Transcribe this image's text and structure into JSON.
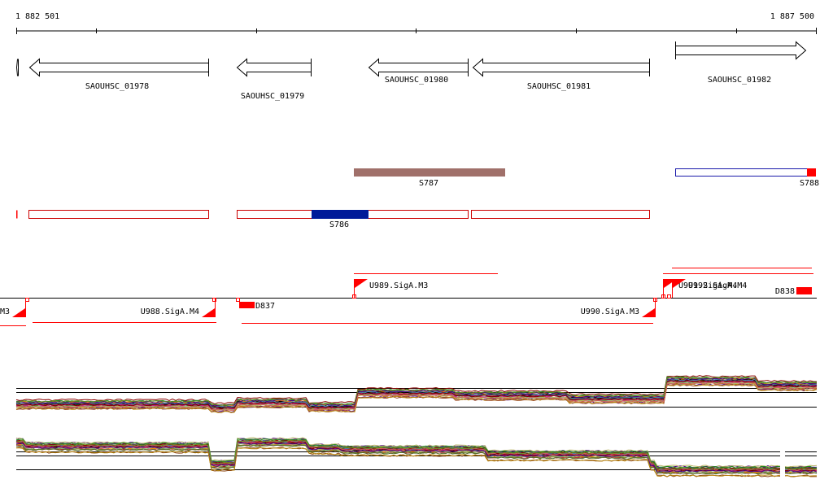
{
  "ruler": {
    "start_label": "1 882 501",
    "end_label": "1 887 500"
  },
  "genes": [
    {
      "name": "SAOUHSC_01978",
      "strand": "-"
    },
    {
      "name": "SAOUHSC_01979",
      "strand": "-"
    },
    {
      "name": "SAOUHSC_01980",
      "strand": "-"
    },
    {
      "name": "SAOUHSC_01981",
      "strand": "-"
    },
    {
      "name": "SAOUHSC_01982",
      "strand": "+"
    }
  ],
  "segments_top": [
    {
      "name": "S787"
    },
    {
      "name": "S788"
    }
  ],
  "segments_bottom": [
    {
      "name": "S786"
    }
  ],
  "promoters": [
    {
      "name": "M3"
    },
    {
      "name": "U988.SigA.M4"
    },
    {
      "name": "U989.SigA.M3"
    },
    {
      "name": "U990.SigA.M3"
    },
    {
      "name": "U991.SigA.M4"
    },
    {
      "name": "U992.SigA.M4"
    }
  ],
  "terminators": [
    {
      "name": "D837"
    },
    {
      "name": "D838"
    }
  ],
  "colors": {
    "gene_outline": "#000000",
    "segment_outline": "#cc0000",
    "s787_fill": "#a0706a",
    "s786_fill": "#001a99",
    "s788_outline": "#1a1aaa",
    "red": "#ff0000"
  }
}
